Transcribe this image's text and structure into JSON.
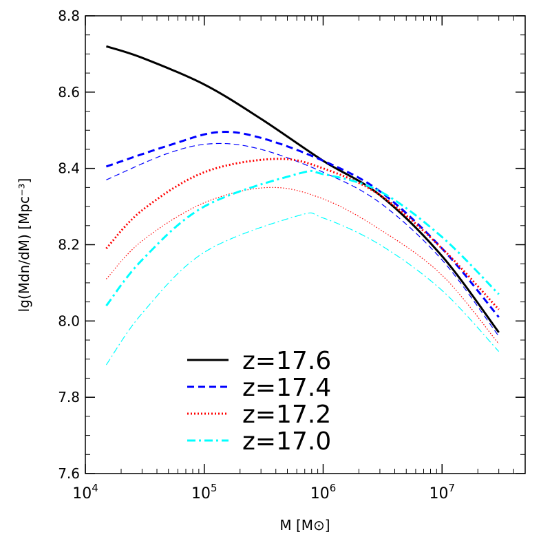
{
  "chart_data": {
    "type": "line",
    "xscale": "log",
    "xlim": [
      10000,
      50000000
    ],
    "ylim": [
      7.6,
      8.8
    ],
    "xlabel": "M  [M⊙]",
    "ylabel": "lg(Mdn/dM)  [Mpc⁻³]",
    "yticks": [
      "7.6",
      "7.8",
      "8.0",
      "8.2",
      "8.4",
      "8.6",
      "8.8"
    ],
    "xticks": [
      {
        "base": "10",
        "exp": "4",
        "value": 10000
      },
      {
        "base": "10",
        "exp": "5",
        "value": 100000
      },
      {
        "base": "10",
        "exp": "6",
        "value": 1000000
      },
      {
        "base": "10",
        "exp": "7",
        "value": 10000000
      }
    ],
    "legend_position": "bottom-center",
    "series": [
      {
        "name": "z=17.6",
        "color": "#000000",
        "style": "solid",
        "weight": "thick",
        "x": [
          15000,
          30000,
          100000,
          300000,
          1000000,
          3000000,
          10000000,
          30000000
        ],
        "y": [
          8.72,
          8.69,
          8.62,
          8.53,
          8.42,
          8.33,
          8.17,
          7.97
        ]
      },
      {
        "name": "",
        "color": "#0000ff",
        "style": "dashed",
        "weight": "thick",
        "x": [
          15000,
          50000,
          130000,
          300000,
          1000000,
          3000000,
          10000000,
          30000000
        ],
        "y": [
          8.405,
          8.46,
          8.495,
          8.48,
          8.42,
          8.34,
          8.19,
          8.01
        ]
      },
      {
        "name": "z=17.4",
        "color": "#0000ff",
        "style": "dashed",
        "weight": "thin",
        "x": [
          15000,
          50000,
          120000,
          300000,
          1000000,
          3000000,
          10000000,
          30000000
        ],
        "y": [
          8.37,
          8.44,
          8.465,
          8.45,
          8.39,
          8.31,
          8.16,
          7.96
        ]
      },
      {
        "name": "z=17.2",
        "color": "#ff0000",
        "style": "dotted",
        "weight": "thick",
        "x": [
          15000,
          30000,
          100000,
          400000,
          1000000,
          3000000,
          10000000,
          30000000
        ],
        "y": [
          8.19,
          8.29,
          8.39,
          8.425,
          8.4,
          8.33,
          8.19,
          8.03
        ]
      },
      {
        "name": "",
        "color": "#ff0000",
        "style": "dotted",
        "weight": "thin",
        "x": [
          15000,
          30000,
          100000,
          350000,
          1000000,
          3000000,
          10000000,
          30000000
        ],
        "y": [
          8.11,
          8.21,
          8.31,
          8.35,
          8.32,
          8.24,
          8.12,
          7.94
        ]
      },
      {
        "name": "z=17.0",
        "color": "#00ffff",
        "style": "dashdot",
        "weight": "thick",
        "x": [
          15000,
          30000,
          100000,
          600000,
          1000000,
          3000000,
          10000000,
          30000000
        ],
        "y": [
          8.04,
          8.16,
          8.3,
          8.385,
          8.385,
          8.34,
          8.22,
          8.07
        ]
      },
      {
        "name": "",
        "color": "#00ffff",
        "style": "dashdot",
        "weight": "thin",
        "x": [
          15000,
          30000,
          100000,
          600000,
          1000000,
          3000000,
          10000000,
          30000000
        ],
        "y": [
          7.885,
          8.02,
          8.18,
          8.275,
          8.27,
          8.2,
          8.08,
          7.92
        ]
      }
    ]
  }
}
